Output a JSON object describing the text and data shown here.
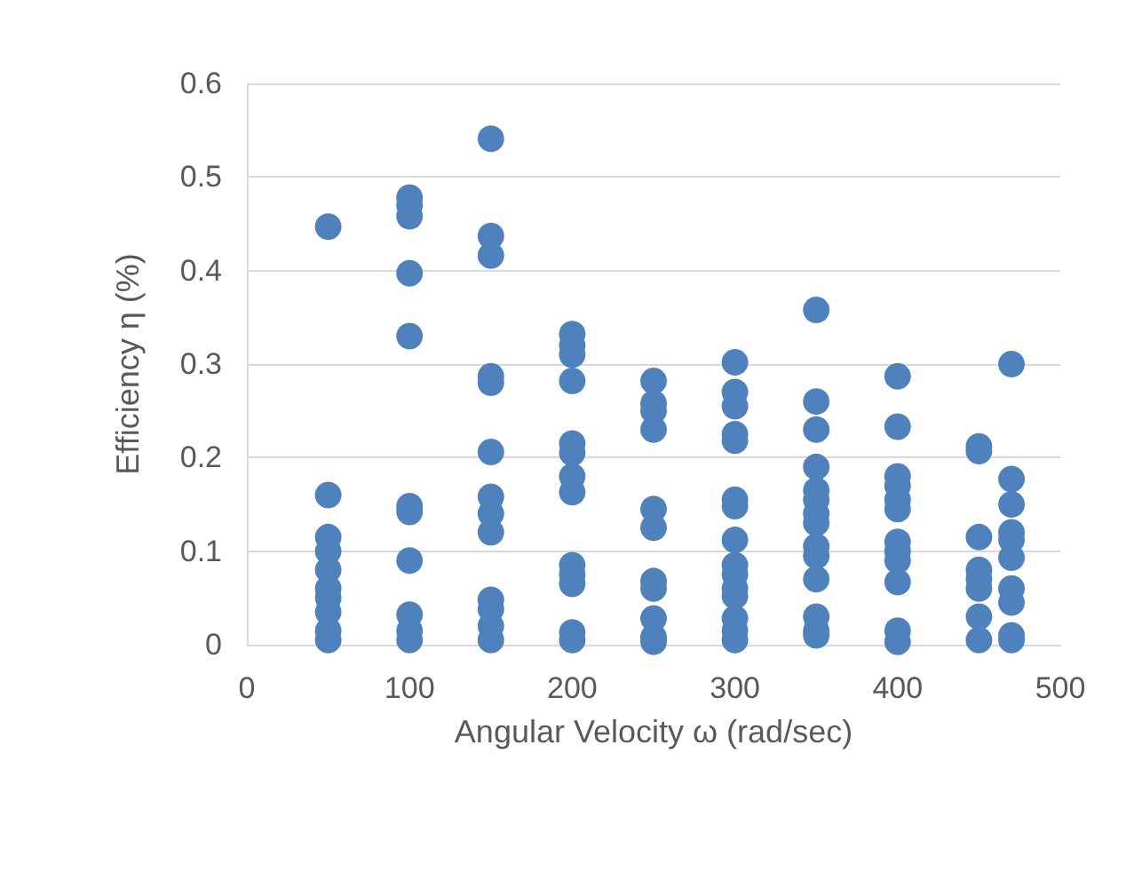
{
  "chart_data": {
    "type": "scatter",
    "xlabel": "Angular Velocity ω (rad/sec)",
    "ylabel": "Efficiency η (%)",
    "x": [
      50,
      50,
      50,
      50,
      50,
      50,
      50,
      50,
      50,
      50,
      100,
      100,
      100,
      100,
      100,
      100,
      100,
      100,
      100,
      100,
      100,
      150,
      150,
      150,
      150,
      150,
      150,
      150,
      150,
      150,
      150,
      150,
      150,
      150,
      200,
      200,
      200,
      200,
      200,
      200,
      200,
      200,
      200,
      200,
      200,
      200,
      200,
      250,
      250,
      250,
      250,
      250,
      250,
      250,
      250,
      250,
      250,
      250,
      300,
      300,
      300,
      300,
      300,
      300,
      300,
      300,
      300,
      300,
      300,
      300,
      300,
      300,
      300,
      350,
      350,
      350,
      350,
      350,
      350,
      350,
      350,
      350,
      350,
      350,
      350,
      350,
      350,
      400,
      400,
      400,
      400,
      400,
      400,
      400,
      400,
      400,
      400,
      400,
      400,
      450,
      450,
      450,
      450,
      450,
      450,
      450,
      450,
      470,
      470,
      470,
      470,
      470,
      470,
      470,
      470,
      470,
      470
    ],
    "values": [
      0.447,
      0.16,
      0.115,
      0.1,
      0.08,
      0.06,
      0.05,
      0.035,
      0.015,
      0.005,
      0.478,
      0.47,
      0.458,
      0.397,
      0.33,
      0.148,
      0.142,
      0.09,
      0.032,
      0.015,
      0.005,
      0.541,
      0.437,
      0.416,
      0.287,
      0.28,
      0.206,
      0.158,
      0.14,
      0.12,
      0.048,
      0.038,
      0.02,
      0.005,
      0.332,
      0.32,
      0.31,
      0.282,
      0.215,
      0.205,
      0.18,
      0.163,
      0.085,
      0.075,
      0.065,
      0.013,
      0.005,
      0.282,
      0.258,
      0.25,
      0.23,
      0.145,
      0.125,
      0.068,
      0.06,
      0.028,
      0.008,
      0.003,
      0.302,
      0.27,
      0.255,
      0.225,
      0.218,
      0.155,
      0.148,
      0.112,
      0.085,
      0.075,
      0.06,
      0.052,
      0.028,
      0.015,
      0.005,
      0.358,
      0.26,
      0.23,
      0.19,
      0.165,
      0.155,
      0.14,
      0.13,
      0.105,
      0.095,
      0.07,
      0.03,
      0.015,
      0.01,
      0.287,
      0.233,
      0.18,
      0.17,
      0.155,
      0.145,
      0.11,
      0.1,
      0.09,
      0.067,
      0.015,
      0.003,
      0.212,
      0.207,
      0.115,
      0.08,
      0.07,
      0.06,
      0.03,
      0.005,
      0.3,
      0.177,
      0.15,
      0.12,
      0.112,
      0.093,
      0.06,
      0.045,
      0.01,
      0.005
    ],
    "color": "#4f81bd",
    "marker": "circle",
    "grid": "y",
    "xlim": [
      0,
      500
    ],
    "xticks": [
      0,
      100,
      200,
      300,
      400,
      500
    ],
    "ylim": [
      0,
      0.6
    ],
    "yticks": [
      0,
      0.1,
      0.2,
      0.3,
      0.4,
      0.5,
      0.6
    ]
  }
}
